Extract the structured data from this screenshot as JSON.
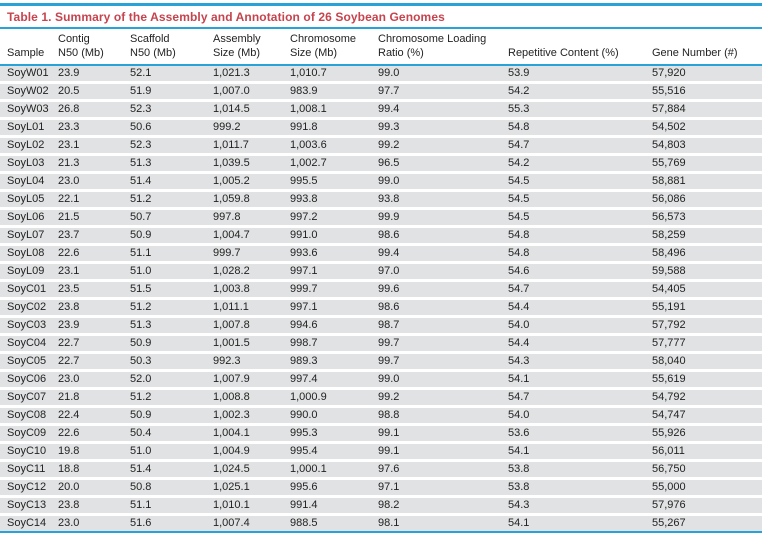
{
  "title": "Table 1. Summary of the Assembly and Annotation of 26 Soybean Genomes",
  "table": {
    "columns": [
      "Sample",
      "Contig\nN50 (Mb)",
      "Scaffold\nN50 (Mb)",
      "Assembly\nSize (Mb)",
      "Chromosome\nSize (Mb)",
      "Chromosome Loading\nRatio (%)",
      "Repetitive Content (%)",
      "Gene Number (#)"
    ],
    "rows": [
      [
        "SoyW01",
        "23.9",
        "52.1",
        "1,021.3",
        "1,010.7",
        "99.0",
        "53.9",
        "57,920"
      ],
      [
        "SoyW02",
        "20.5",
        "51.9",
        "1,007.0",
        "983.9",
        "97.7",
        "54.2",
        "55,516"
      ],
      [
        "SoyW03",
        "26.8",
        "52.3",
        "1,014.5",
        "1,008.1",
        "99.4",
        "55.3",
        "57,884"
      ],
      [
        "SoyL01",
        "23.3",
        "50.6",
        "999.2",
        "991.8",
        "99.3",
        "54.8",
        "54,502"
      ],
      [
        "SoyL02",
        "23.1",
        "52.3",
        "1,011.7",
        "1,003.6",
        "99.2",
        "54.7",
        "54,803"
      ],
      [
        "SoyL03",
        "21.3",
        "51.3",
        "1,039.5",
        "1,002.7",
        "96.5",
        "54.2",
        "55,769"
      ],
      [
        "SoyL04",
        "23.0",
        "51.4",
        "1,005.2",
        "995.5",
        "99.0",
        "54.5",
        "58,881"
      ],
      [
        "SoyL05",
        "22.1",
        "51.2",
        "1,059.8",
        "993.8",
        "93.8",
        "54.5",
        "56,086"
      ],
      [
        "SoyL06",
        "21.5",
        "50.7",
        "997.8",
        "997.2",
        "99.9",
        "54.5",
        "56,573"
      ],
      [
        "SoyL07",
        "23.7",
        "50.9",
        "1,004.7",
        "991.0",
        "98.6",
        "54.8",
        "58,259"
      ],
      [
        "SoyL08",
        "22.6",
        "51.1",
        "999.7",
        "993.6",
        "99.4",
        "54.8",
        "58,496"
      ],
      [
        "SoyL09",
        "23.1",
        "51.0",
        "1,028.2",
        "997.1",
        "97.0",
        "54.6",
        "59,588"
      ],
      [
        "SoyC01",
        "23.5",
        "51.5",
        "1,003.8",
        "999.7",
        "99.6",
        "54.7",
        "54,405"
      ],
      [
        "SoyC02",
        "23.8",
        "51.2",
        "1,011.1",
        "997.1",
        "98.6",
        "54.4",
        "55,191"
      ],
      [
        "SoyC03",
        "23.9",
        "51.3",
        "1,007.8",
        "994.6",
        "98.7",
        "54.0",
        "57,792"
      ],
      [
        "SoyC04",
        "22.7",
        "50.9",
        "1,001.5",
        "998.7",
        "99.7",
        "54.4",
        "57,777"
      ],
      [
        "SoyC05",
        "22.7",
        "50.3",
        "992.3",
        "989.3",
        "99.7",
        "54.3",
        "58,040"
      ],
      [
        "SoyC06",
        "23.0",
        "52.0",
        "1,007.9",
        "997.4",
        "99.0",
        "54.1",
        "55,619"
      ],
      [
        "SoyC07",
        "21.8",
        "51.2",
        "1,008.8",
        "1,000.9",
        "99.2",
        "54.7",
        "54,792"
      ],
      [
        "SoyC08",
        "22.4",
        "50.9",
        "1,002.3",
        "990.0",
        "98.8",
        "54.0",
        "54,747"
      ],
      [
        "SoyC09",
        "22.6",
        "50.4",
        "1,004.1",
        "995.3",
        "99.1",
        "53.6",
        "55,926"
      ],
      [
        "SoyC10",
        "19.8",
        "51.0",
        "1,004.9",
        "995.4",
        "99.1",
        "54.1",
        "56,011"
      ],
      [
        "SoyC11",
        "18.8",
        "51.4",
        "1,024.5",
        "1,000.1",
        "97.6",
        "53.8",
        "56,750"
      ],
      [
        "SoyC12",
        "20.0",
        "50.8",
        "1,025.1",
        "995.6",
        "97.1",
        "53.8",
        "55,000"
      ],
      [
        "SoyC13",
        "23.8",
        "51.1",
        "1,010.1",
        "991.4",
        "98.2",
        "54.3",
        "57,976"
      ],
      [
        "SoyC14",
        "23.0",
        "51.6",
        "1,007.4",
        "988.5",
        "98.1",
        "54.1",
        "55,267"
      ]
    ]
  },
  "colors": {
    "accent_red": "#c5444e",
    "rule_blue": "#29a3d7",
    "row_stripe": "#e1e2e3"
  }
}
